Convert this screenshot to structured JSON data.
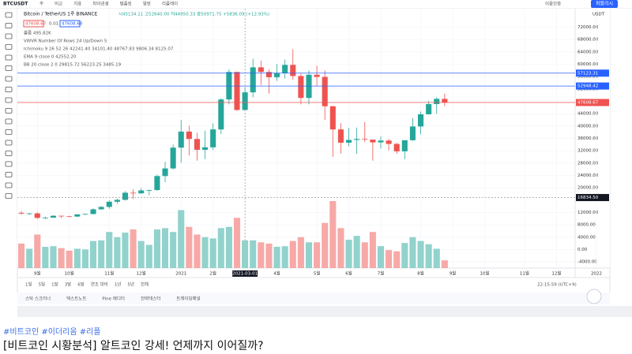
{
  "ui": {
    "symbol": "BTCUSDT",
    "toolbar": [
      "주",
      "비교",
      "지표",
      "파이낸셜",
      "템플릿",
      "얼럿",
      "리플레이"
    ],
    "right_tool": "이용안증",
    "publish": "퍼블리시",
    "legend_title": "Bitcoin / TetherUS 1주 BINANCE",
    "legend_ohlc": "시45134.11 고52640.00 저44950.33 종50971.75 +5836.09 (+12.93%)",
    "bid": "47608.67",
    "spread": "0.01",
    "ask": "47608.68",
    "indicators": [
      "볼륨 495.82K",
      "VWVR Number Of Rows 24 Up/Down 5",
      "Ichimoku 9 26 52 26 42241.40 34101.40 48767.83 9806.34 8125.07",
      "EMA 9 close 0 42552.20",
      "BB 20 close 2 0 29815.72 56223.25 3485.19"
    ],
    "currency": "USDT",
    "ranges": [
      "1일",
      "5일",
      "1달",
      "3달",
      "6달",
      "연초 대비",
      "1년",
      "5년",
      "전체"
    ],
    "clock": "22:15:59 (UTC+9)",
    "tabs": [
      "스탁 스크리너",
      "텍스트노트",
      "Pine 에디터",
      "전략테스터",
      "트레이딩패널"
    ],
    "hashtags": "#비트코인 #이더리움 #리플",
    "headline": "[비트코인 시황분석] 알트코인 강세! 언제까지 이어질까?"
  },
  "chart_data": {
    "type": "candlestick",
    "up_color": "#26a69a",
    "down_color": "#ef5350",
    "grid": true,
    "categories": [
      null,
      null,
      "9월",
      null,
      null,
      null,
      "10월",
      null,
      null,
      null,
      null,
      "11월",
      null,
      null,
      null,
      "12월",
      null,
      null,
      null,
      null,
      "2021",
      null,
      null,
      null,
      "2월",
      null,
      null,
      null,
      "2021-03-01",
      null,
      null,
      null,
      "4월",
      null,
      null,
      null,
      null,
      "5월",
      null,
      null,
      null,
      "6월",
      null,
      null,
      null,
      "7월",
      null,
      null,
      null,
      null,
      "8월",
      null,
      null,
      null,
      "9월",
      null,
      null,
      null,
      "10월",
      null,
      null,
      null,
      null,
      "11월",
      null,
      null,
      null,
      "12월",
      null,
      null,
      null,
      null,
      "2022"
    ],
    "open": [
      11900,
      11650,
      11700,
      10250,
      10330,
      10940,
      10770,
      10670,
      11380,
      11500,
      13030,
      13800,
      15480,
      16100,
      18400,
      18200,
      19150,
      19270,
      23800,
      26270,
      33000,
      38200,
      35800,
      32300,
      33100,
      38900,
      48600,
      57500,
      45200,
      50900,
      59000,
      57500,
      55800,
      57100,
      59800,
      56200,
      49100,
      56600,
      55900,
      46400,
      38900,
      34600,
      35500,
      35800,
      35600,
      34700,
      35300,
      34200,
      31800,
      35400,
      39850,
      43800,
      47100,
      48800,
      null,
      null,
      null,
      null,
      null,
      null,
      null,
      null,
      null,
      null,
      null,
      null,
      null,
      null,
      null,
      null,
      null,
      null,
      null
    ],
    "high": [
      12470,
      11800,
      12080,
      10600,
      11100,
      10960,
      10950,
      11500,
      11720,
      13350,
      14100,
      15970,
      16500,
      18900,
      19500,
      19900,
      19400,
      24300,
      28400,
      34000,
      42000,
      40100,
      37800,
      38500,
      40900,
      49000,
      58300,
      57600,
      52600,
      61800,
      61200,
      58400,
      60100,
      61500,
      64900,
      57000,
      58000,
      59500,
      58000,
      46500,
      40900,
      39400,
      39500,
      41300,
      35600,
      36600,
      35800,
      34600,
      35400,
      42600,
      44700,
      48100,
      49300,
      50500,
      null,
      null,
      null,
      null,
      null,
      null,
      null,
      null,
      null,
      null,
      null,
      null,
      null,
      null,
      null,
      null,
      null,
      null,
      null
    ],
    "low": [
      11300,
      11130,
      9900,
      9900,
      10200,
      10150,
      10520,
      10530,
      11200,
      11400,
      12900,
      13200,
      14800,
      15900,
      16300,
      18000,
      17600,
      19000,
      21800,
      25900,
      28100,
      30400,
      28800,
      29300,
      32300,
      37400,
      47000,
      44900,
      45000,
      49300,
      53300,
      50500,
      54600,
      55400,
      55000,
      47000,
      47000,
      52900,
      42000,
      30000,
      31100,
      33400,
      31000,
      34800,
      28800,
      32700,
      32100,
      31000,
      29300,
      35200,
      37300,
      43700,
      43900,
      46400,
      null,
      null,
      null,
      null,
      null,
      null,
      null,
      null,
      null,
      null,
      null,
      null,
      null,
      null,
      null,
      null,
      null,
      null,
      null
    ],
    "close": [
      11650,
      11700,
      10250,
      10330,
      10940,
      10770,
      10670,
      11380,
      11500,
      13030,
      13800,
      15480,
      16100,
      18400,
      18200,
      19150,
      19270,
      23800,
      26270,
      33000,
      38200,
      35800,
      32300,
      33100,
      38900,
      48600,
      57500,
      45200,
      50900,
      59000,
      57500,
      55800,
      57100,
      59800,
      56200,
      49100,
      56600,
      55900,
      46400,
      38900,
      34600,
      35500,
      35800,
      35600,
      34700,
      35300,
      34200,
      31800,
      35400,
      39850,
      43800,
      47100,
      48800,
      47600,
      null,
      null,
      null,
      null,
      null,
      null,
      null,
      null,
      null,
      null,
      null,
      null,
      null,
      null,
      null,
      null,
      null,
      null,
      null
    ],
    "volume": [
      380,
      300,
      520,
      330,
      340,
      310,
      270,
      300,
      290,
      420,
      430,
      560,
      480,
      550,
      600,
      420,
      360,
      600,
      620,
      560,
      900,
      640,
      520,
      480,
      460,
      620,
      640,
      780,
      430,
      430,
      400,
      380,
      330,
      340,
      420,
      480,
      400,
      400,
      700,
      1040,
      620,
      440,
      500,
      400,
      560,
      340,
      280,
      260,
      390,
      480,
      420,
      370,
      300,
      120,
      null,
      null,
      null,
      null,
      null,
      null,
      null,
      null,
      null,
      null,
      null,
      null,
      null,
      null,
      null,
      null,
      null,
      null,
      null
    ],
    "ylim": [
      -6000,
      78000
    ],
    "yticks": [
      {
        "value": 72000,
        "label": "72000.00"
      },
      {
        "value": 68000,
        "label": "68000.00"
      },
      {
        "value": 64000,
        "label": "64000.00"
      },
      {
        "value": 60000,
        "label": "60000.00"
      },
      {
        "value": 56000,
        "label": "56000.00"
      },
      {
        "value": 52000,
        "label": "52000.00"
      },
      {
        "value": 48000,
        "label": "48000.00"
      },
      {
        "value": 44000,
        "label": "44000.00"
      },
      {
        "value": 40000,
        "label": "40000.00"
      },
      {
        "value": 36000,
        "label": "36000.00"
      },
      {
        "value": 32000,
        "label": "32000.00"
      },
      {
        "value": 28000,
        "label": "28000.00"
      },
      {
        "value": 24000,
        "label": "24000.00"
      },
      {
        "value": 20000,
        "label": "20000.00"
      },
      {
        "value": 12000,
        "label": "12000.00"
      },
      {
        "value": 8000,
        "label": "8000.00"
      },
      {
        "value": 4000,
        "label": "4000.00"
      },
      {
        "value": 0,
        "label": "0.00"
      },
      {
        "value": -4000,
        "label": "-4000.00"
      }
    ],
    "price_marks": [
      {
        "value": 57123.31,
        "label": "57123.31",
        "color": "#2962ff"
      },
      {
        "value": 52948.42,
        "label": "52948.42",
        "color": "#2962ff"
      },
      {
        "value": 47608.67,
        "label": "47608.67",
        "color": "#ef5350"
      }
    ],
    "crosshair_price": {
      "value": 16834.5,
      "label": "16834.50"
    }
  }
}
